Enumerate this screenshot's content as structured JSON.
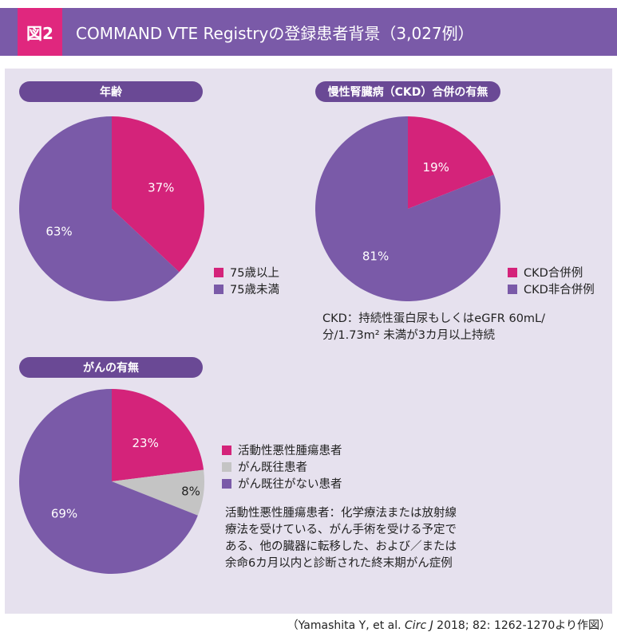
{
  "header": {
    "fig_label": "図2",
    "title": "COMMAND VTE Registryの登録患者背景（3,027例）"
  },
  "colors": {
    "pink": "#d4237a",
    "purple": "#7a5aa8",
    "gray": "#c4c4c4",
    "header_purple": "#7a5aa8",
    "pill_purple": "#6a4995",
    "panel_bg": "#e6e1ee"
  },
  "chart_data": [
    {
      "type": "pie",
      "title": "年齢",
      "slices": [
        {
          "label": "75歳以上",
          "value": 37,
          "display": "37%",
          "color": "#d4237a"
        },
        {
          "label": "75歳未満",
          "value": 63,
          "display": "63%",
          "color": "#7a5aa8"
        }
      ]
    },
    {
      "type": "pie",
      "title": "慢性腎臓病（CKD）合併の有無",
      "slices": [
        {
          "label": "CKD合併例",
          "value": 19,
          "display": "19%",
          "color": "#d4237a"
        },
        {
          "label": "CKD非合併例",
          "value": 81,
          "display": "81%",
          "color": "#7a5aa8"
        }
      ],
      "note_lines": [
        "CKD：持続性蛋白尿もしくはeGFR 60mL/",
        "分/1.73m² 未満が3カ月以上持続"
      ]
    },
    {
      "type": "pie",
      "title": "がんの有無",
      "slices": [
        {
          "label": "活動性悪性腫瘍患者",
          "value": 23,
          "display": "23%",
          "color": "#d4237a"
        },
        {
          "label": "がん既往患者",
          "value": 8,
          "display": "8%",
          "color": "#c4c4c4"
        },
        {
          "label": "がん既往がない患者",
          "value": 69,
          "display": "69%",
          "color": "#7a5aa8"
        }
      ],
      "note_lines": [
        "活動性悪性腫瘍患者：化学療法または放射線",
        "療法を受けている、がん手術を受ける予定で",
        "ある、他の臓器に転移した、および／または",
        "余命6カ月以内と診断された終末期がん症例"
      ]
    }
  ],
  "citation": {
    "pre": "（Yamashita Y, et al. ",
    "journal": "Circ J",
    "post": " 2018; 82: 1262-1270より作図）"
  }
}
